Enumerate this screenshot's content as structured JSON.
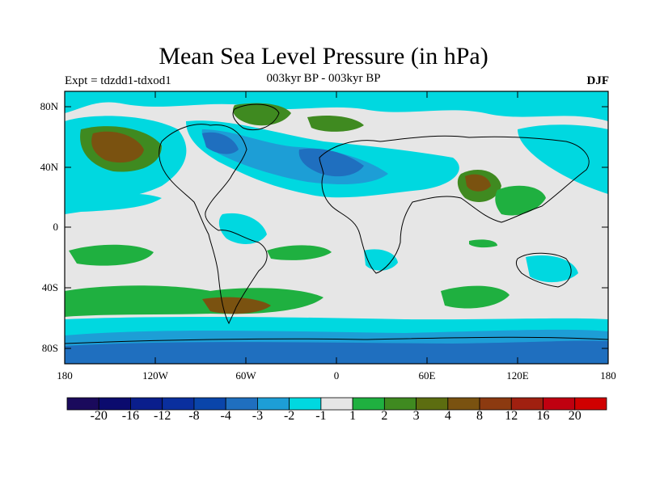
{
  "title": "Mean Sea Level Pressure (in hPa)",
  "left_label": "Expt = tdzdd1-tdxod1",
  "center_label": "003kyr BP - 003kyr BP",
  "right_label": "DJF",
  "lat_ticks": [
    "80N",
    "40N",
    "0",
    "40S",
    "80S"
  ],
  "lon_ticks": [
    "180",
    "120W",
    "60W",
    "0",
    "60E",
    "120E",
    "180"
  ],
  "colorbar": {
    "labels": [
      "-20",
      "-16",
      "-12",
      "-8",
      "-4",
      "-3",
      "-2",
      "-1",
      "1",
      "2",
      "3",
      "4",
      "8",
      "12",
      "16",
      "20"
    ],
    "colors": [
      "#1a0a5c",
      "#0b0b6e",
      "#0a1e8c",
      "#0a2f9e",
      "#0a45aa",
      "#1f6fbf",
      "#1d9ed6",
      "#00d8e0",
      "#e6e6e6",
      "#1fb040",
      "#3f8a20",
      "#5c6d10",
      "#7a5210",
      "#8c3a10",
      "#a02010",
      "#c00010",
      "#d00000"
    ]
  },
  "map_colors": {
    "ocean_neutral": "#e6e6e6",
    "light_blue": "#00d8e0",
    "mid_blue": "#1d9ed6",
    "deep_blue": "#1f6fbf",
    "green": "#1fb040",
    "olive": "#3f8a20",
    "brown": "#7a5210"
  }
}
